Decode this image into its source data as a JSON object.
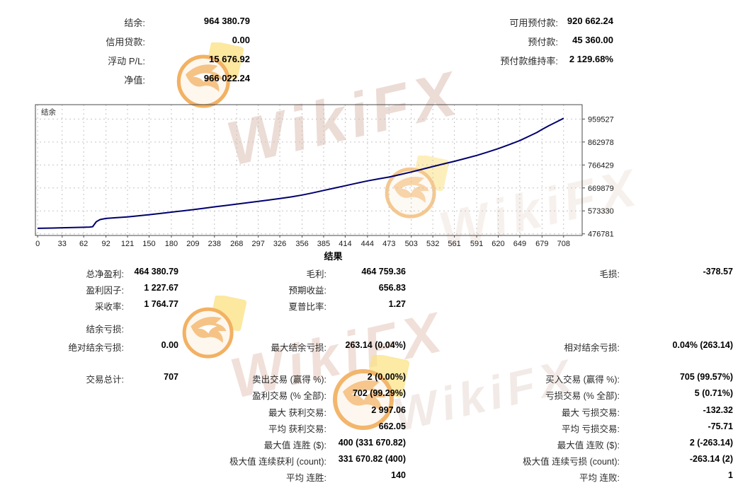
{
  "summary": {
    "rows": [
      {
        "ll": "结余:",
        "lv": "964 380.79",
        "rl": "可用预付款:",
        "rv": "920 662.24"
      },
      {
        "ll": "信用贷款:",
        "lv": "0.00",
        "rl": "预付款:",
        "rv": "45 360.00"
      },
      {
        "ll": "浮动 P/L:",
        "lv": "15 676.92",
        "rl": "预付款维持率:",
        "rv": "2 129.68%"
      },
      {
        "ll": "净值:",
        "lv": "966 022.24",
        "rl": null,
        "rv": null
      }
    ]
  },
  "chart_data": {
    "type": "line",
    "title": "结余",
    "series_label": "结余",
    "legend_position": "top-left-inside",
    "grid": true,
    "line_color": "#00006e",
    "grid_color": "#c3c3c3",
    "axis_color": "#4a4a4a",
    "x_ticks": [
      0,
      33,
      62,
      92,
      121,
      150,
      180,
      209,
      238,
      268,
      297,
      326,
      356,
      385,
      414,
      444,
      473,
      503,
      532,
      561,
      591,
      620,
      649,
      679,
      708
    ],
    "y_ticks": [
      476781,
      573330,
      669879,
      766429,
      862978,
      959527
    ],
    "x_range": [
      -3,
      733
    ],
    "y_range": [
      470000,
      1020000
    ],
    "xlabel": "",
    "ylabel": "",
    "series": [
      {
        "name": "结余",
        "points": [
          [
            0,
            500000
          ],
          [
            20,
            501200
          ],
          [
            33,
            502300
          ],
          [
            48,
            503500
          ],
          [
            62,
            504600
          ],
          [
            70,
            505500
          ],
          [
            74,
            507000
          ],
          [
            79,
            528000
          ],
          [
            84,
            537000
          ],
          [
            92,
            541500
          ],
          [
            105,
            544500
          ],
          [
            121,
            548000
          ],
          [
            135,
            552500
          ],
          [
            150,
            557500
          ],
          [
            165,
            562500
          ],
          [
            180,
            568000
          ],
          [
            195,
            573500
          ],
          [
            209,
            578500
          ],
          [
            224,
            584500
          ],
          [
            238,
            590500
          ],
          [
            253,
            596000
          ],
          [
            268,
            602000
          ],
          [
            283,
            608000
          ],
          [
            297,
            613500
          ],
          [
            312,
            619500
          ],
          [
            326,
            625500
          ],
          [
            341,
            632000
          ],
          [
            356,
            640000
          ],
          [
            370,
            649000
          ],
          [
            385,
            659500
          ],
          [
            400,
            669500
          ],
          [
            414,
            679000
          ],
          [
            429,
            689500
          ],
          [
            444,
            699500
          ],
          [
            458,
            707500
          ],
          [
            473,
            715500
          ],
          [
            488,
            726000
          ],
          [
            503,
            737000
          ],
          [
            517,
            748000
          ],
          [
            532,
            760000
          ],
          [
            546,
            770500
          ],
          [
            561,
            782000
          ],
          [
            576,
            794000
          ],
          [
            591,
            806500
          ],
          [
            605,
            820000
          ],
          [
            620,
            835000
          ],
          [
            634,
            851000
          ],
          [
            649,
            869000
          ],
          [
            662,
            888000
          ],
          [
            672,
            903000
          ],
          [
            679,
            916000
          ],
          [
            688,
            931000
          ],
          [
            698,
            947000
          ],
          [
            708,
            962500
          ]
        ]
      }
    ]
  },
  "results": {
    "title": "结果",
    "rows": [
      {
        "left": {
          "l": "总净盈利:",
          "v": "464 380.79"
        },
        "mid": {
          "l": "毛利:",
          "v": "464 759.36"
        },
        "right": {
          "l": "毛损:",
          "v": "-378.57"
        }
      },
      {
        "left": {
          "l": "盈利因子:",
          "v": "1 227.67"
        },
        "mid": {
          "l": "预期收益:",
          "v": "656.83"
        },
        "right": null
      },
      {
        "left": {
          "l": "采收率:",
          "v": "1 764.77"
        },
        "mid": {
          "l": "夏普比率:",
          "v": "1.27"
        },
        "right": null
      },
      {
        "left": {
          "l": "结余亏损:",
          "v": ""
        },
        "mid": null,
        "right": null
      },
      {
        "left": {
          "l": "绝对结余亏损:",
          "v": "0.00"
        },
        "mid": {
          "l": "最大结余亏损:",
          "v": "263.14 (0.04%)"
        },
        "right": {
          "l": "相对结余亏损:",
          "v": "0.04% (263.14)"
        }
      },
      {
        "left": {
          "l": "交易总计:",
          "v": "707"
        },
        "mid": {
          "l": "卖出交易 (赢得 %):",
          "v": "2 (0.00%)"
        },
        "right": {
          "l": "买入交易 (赢得 %):",
          "v": "705 (99.57%)"
        }
      },
      {
        "left": null,
        "mid": {
          "l": "盈利交易 (% 全部):",
          "v": "702 (99.29%)"
        },
        "right": {
          "l": "亏损交易 (% 全部):",
          "v": "5 (0.71%)"
        }
      },
      {
        "left": null,
        "mid": {
          "l": "最大 获利交易:",
          "v": "2 997.06"
        },
        "right": {
          "l": "最大 亏损交易:",
          "v": "-132.32"
        }
      },
      {
        "left": null,
        "mid": {
          "l": "平均 获利交易:",
          "v": "662.05"
        },
        "right": {
          "l": "平均 亏损交易:",
          "v": "-75.71"
        }
      },
      {
        "left": null,
        "mid": {
          "l": "最大值 连胜 ($):",
          "v": "400 (331 670.82)"
        },
        "right": {
          "l": "最大值 连败 ($):",
          "v": "2 (-263.14)"
        }
      },
      {
        "left": null,
        "mid": {
          "l": "极大值 连续获利 (count):",
          "v": "331 670.82 (400)"
        },
        "right": {
          "l": "极大值 连续亏损 (count):",
          "v": "-263.14 (2)"
        }
      },
      {
        "left": null,
        "mid": {
          "l": "平均 连胜:",
          "v": "140"
        },
        "right": {
          "l": "平均 连败:",
          "v": "1"
        }
      }
    ]
  },
  "watermark": {
    "text": "WikiFX",
    "logo_orange": "#f0a448",
    "logo_yellow": "#fbe182",
    "text_color_top": "#e9d7cf",
    "text_color_mid": "#eedbd3",
    "text_color_light": "#efe6e2"
  }
}
